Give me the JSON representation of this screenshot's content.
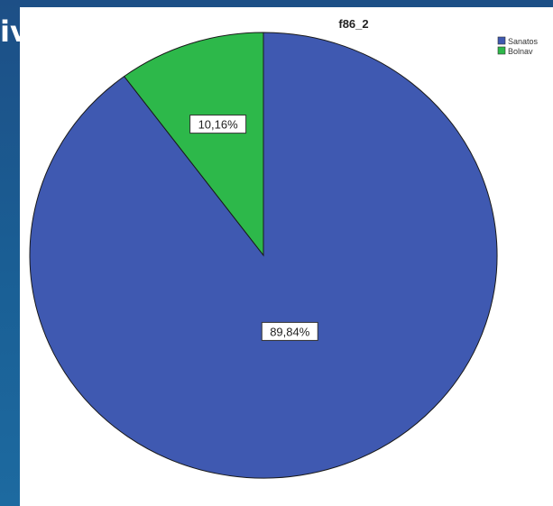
{
  "slide": {
    "partial_title": "iv"
  },
  "chart_data": {
    "type": "pie",
    "title": "f86_2",
    "slices": [
      {
        "label": "Sanatos",
        "value": 89.84,
        "display": "89,84%",
        "color": "#3f59b1"
      },
      {
        "label": "Bolnav",
        "value": 10.16,
        "display": "10,16%",
        "color": "#2db84a"
      }
    ],
    "start_angle_deg": 0,
    "direction": "clockwise",
    "legend": {
      "position": "top-right"
    }
  }
}
